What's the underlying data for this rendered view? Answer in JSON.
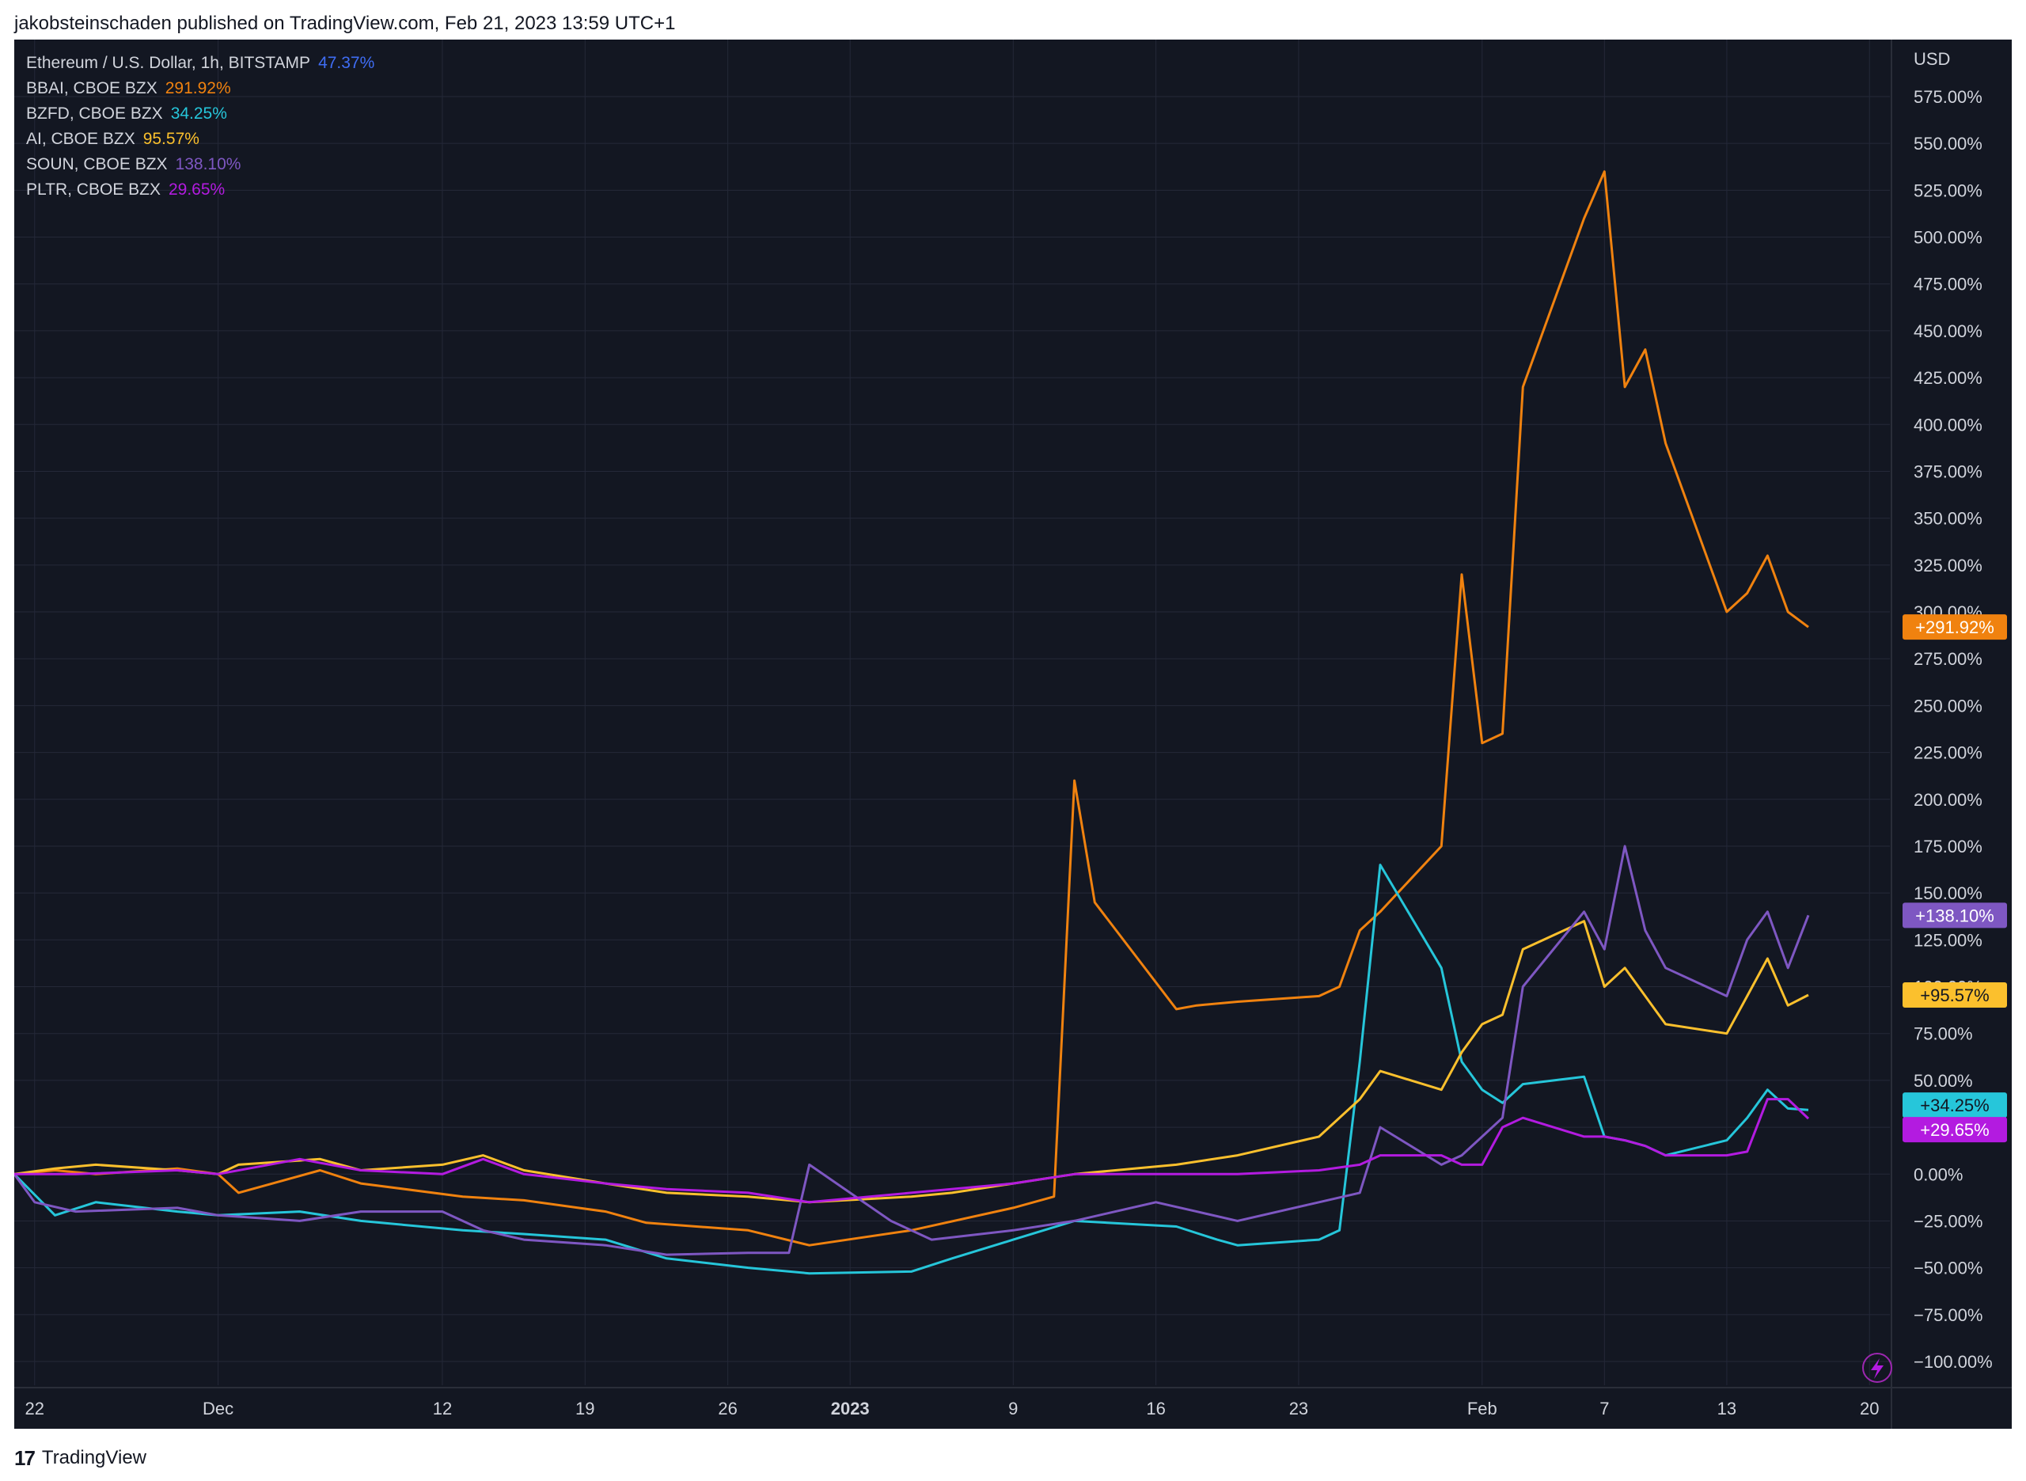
{
  "header": {
    "published": "jakobsteinschaden published on TradingView.com, Feb 21, 2023 13:59 UTC+1"
  },
  "footer": {
    "brand": "TradingView",
    "logo_icon": "tradingview-logo-icon"
  },
  "colors": {
    "background": "#131722",
    "grid": "#242838",
    "text": "#d1d4dc",
    "eth": "#2962ff",
    "bbai": "#f0820f",
    "bzfd": "#26c6da",
    "ai": "#fbc02d",
    "soun": "#673ab7",
    "pltr": "#9c27b0"
  },
  "legend": [
    {
      "label": "Ethereum / U.S. Dollar, 1h, BITSTAMP",
      "value": "47.37%",
      "color": "#3f6df4"
    },
    {
      "label": "BBAI, CBOE BZX",
      "value": "291.92%",
      "color": "#f0820f"
    },
    {
      "label": "BZFD, CBOE BZX",
      "value": "34.25%",
      "color": "#26c6da"
    },
    {
      "label": "AI, CBOE BZX",
      "value": "95.57%",
      "color": "#fbc02d"
    },
    {
      "label": "SOUN, CBOE BZX",
      "value": "138.10%",
      "color": "#7e57c2"
    },
    {
      "label": "PLTR, CBOE BZX",
      "value": "29.65%",
      "color": "#b31be0"
    }
  ],
  "chart_data": {
    "type": "line",
    "ylabel": "USD",
    "ylim": [
      -100,
      575
    ],
    "y_ticks": [
      "575.00%",
      "550.00%",
      "525.00%",
      "500.00%",
      "475.00%",
      "450.00%",
      "425.00%",
      "400.00%",
      "375.00%",
      "350.00%",
      "325.00%",
      "300.00%",
      "275.00%",
      "250.00%",
      "225.00%",
      "200.00%",
      "175.00%",
      "150.00%",
      "125.00%",
      "100.00%",
      "75.00%",
      "50.00%",
      "25.00%",
      "0.00%",
      "−25.00%",
      "−50.00%",
      "−75.00%",
      "−100.00%"
    ],
    "x_ticks": [
      {
        "label": "22",
        "date": "2022-11-22",
        "bold": false
      },
      {
        "label": "Dec",
        "date": "2022-12-01",
        "bold": false
      },
      {
        "label": "12",
        "date": "2022-12-12",
        "bold": false
      },
      {
        "label": "19",
        "date": "2022-12-19",
        "bold": false
      },
      {
        "label": "26",
        "date": "2022-12-26",
        "bold": false
      },
      {
        "label": "2023",
        "date": "2023-01-01",
        "bold": true
      },
      {
        "label": "9",
        "date": "2023-01-09",
        "bold": false
      },
      {
        "label": "16",
        "date": "2023-01-16",
        "bold": false
      },
      {
        "label": "23",
        "date": "2023-01-23",
        "bold": false
      },
      {
        "label": "Feb",
        "date": "2023-02-01",
        "bold": false
      },
      {
        "label": "7",
        "date": "2023-02-07",
        "bold": false
      },
      {
        "label": "13",
        "date": "2023-02-13",
        "bold": false
      },
      {
        "label": "20",
        "date": "2023-02-20",
        "bold": false
      }
    ],
    "series": [
      {
        "name": "BBAI, CBOE BZX",
        "color": "#f0820f",
        "last": "+291.92%",
        "x": [
          "2022-11-21",
          "2022-11-23",
          "2022-11-25",
          "2022-11-29",
          "2022-12-01",
          "2022-12-02",
          "2022-12-06",
          "2022-12-08",
          "2022-12-13",
          "2022-12-16",
          "2022-12-20",
          "2022-12-22",
          "2022-12-27",
          "2022-12-30",
          "2023-01-04",
          "2023-01-09",
          "2023-01-11",
          "2023-01-12",
          "2023-01-13",
          "2023-01-17",
          "2023-01-18",
          "2023-01-20",
          "2023-01-24",
          "2023-01-25",
          "2023-01-26",
          "2023-01-27",
          "2023-01-30",
          "2023-01-31",
          "2023-02-01",
          "2023-02-02",
          "2023-02-03",
          "2023-02-06",
          "2023-02-07",
          "2023-02-08",
          "2023-02-09",
          "2023-02-10",
          "2023-02-13",
          "2023-02-14",
          "2023-02-15",
          "2023-02-16",
          "2023-02-17"
        ],
        "y": [
          0,
          2,
          0,
          3,
          0,
          -10,
          2,
          -5,
          -12,
          -14,
          -20,
          -26,
          -30,
          -38,
          -30,
          -18,
          -12,
          210,
          145,
          88,
          90,
          92,
          95,
          100,
          130,
          140,
          175,
          320,
          230,
          235,
          420,
          510,
          535,
          420,
          440,
          390,
          300,
          310,
          330,
          300,
          291.92
        ]
      },
      {
        "name": "BZFD, CBOE BZX",
        "color": "#26c6da",
        "last": "+34.25%",
        "x": [
          "2022-11-21",
          "2022-11-23",
          "2022-11-25",
          "2022-11-29",
          "2022-12-01",
          "2022-12-05",
          "2022-12-08",
          "2022-12-13",
          "2022-12-16",
          "2022-12-20",
          "2022-12-23",
          "2022-12-27",
          "2022-12-30",
          "2023-01-04",
          "2023-01-06",
          "2023-01-09",
          "2023-01-12",
          "2023-01-17",
          "2023-01-19",
          "2023-01-20",
          "2023-01-24",
          "2023-01-25",
          "2023-01-26",
          "2023-01-27",
          "2023-01-30",
          "2023-01-31",
          "2023-02-01",
          "2023-02-02",
          "2023-02-03",
          "2023-02-06",
          "2023-02-07",
          "2023-02-08",
          "2023-02-09",
          "2023-02-10",
          "2023-02-13",
          "2023-02-14",
          "2023-02-15",
          "2023-02-16",
          "2023-02-17"
        ],
        "y": [
          0,
          -22,
          -15,
          -20,
          -22,
          -20,
          -25,
          -30,
          -32,
          -35,
          -45,
          -50,
          -53,
          -52,
          -45,
          -35,
          -25,
          -28,
          -35,
          -38,
          -35,
          -30,
          60,
          165,
          110,
          60,
          45,
          38,
          48,
          52,
          20,
          18,
          15,
          10,
          18,
          30,
          45,
          35,
          34.25
        ]
      },
      {
        "name": "AI, CBOE BZX",
        "color": "#fbc02d",
        "last": "+95.57%",
        "x": [
          "2022-11-21",
          "2022-11-23",
          "2022-11-25",
          "2022-11-29",
          "2022-12-01",
          "2022-12-02",
          "2022-12-06",
          "2022-12-08",
          "2022-12-12",
          "2022-12-14",
          "2022-12-16",
          "2022-12-20",
          "2022-12-23",
          "2022-12-27",
          "2022-12-30",
          "2023-01-04",
          "2023-01-06",
          "2023-01-09",
          "2023-01-12",
          "2023-01-17",
          "2023-01-20",
          "2023-01-24",
          "2023-01-26",
          "2023-01-27",
          "2023-01-30",
          "2023-01-31",
          "2023-02-01",
          "2023-02-02",
          "2023-02-03",
          "2023-02-06",
          "2023-02-07",
          "2023-02-08",
          "2023-02-09",
          "2023-02-10",
          "2023-02-13",
          "2023-02-14",
          "2023-02-15",
          "2023-02-16",
          "2023-02-17"
        ],
        "y": [
          0,
          3,
          5,
          2,
          0,
          5,
          8,
          2,
          5,
          10,
          2,
          -5,
          -10,
          -12,
          -15,
          -12,
          -10,
          -5,
          0,
          5,
          10,
          20,
          40,
          55,
          45,
          65,
          80,
          85,
          120,
          135,
          100,
          110,
          95,
          80,
          75,
          95,
          115,
          90,
          95.57
        ]
      },
      {
        "name": "SOUN, CBOE BZX",
        "color": "#7e57c2",
        "last": "+138.10%",
        "x": [
          "2022-11-21",
          "2022-11-22",
          "2022-11-24",
          "2022-11-29",
          "2022-12-01",
          "2022-12-05",
          "2022-12-08",
          "2022-12-12",
          "2022-12-14",
          "2022-12-16",
          "2022-12-20",
          "2022-12-23",
          "2022-12-27",
          "2022-12-29",
          "2022-12-30",
          "2023-01-03",
          "2023-01-05",
          "2023-01-09",
          "2023-01-12",
          "2023-01-16",
          "2023-01-18",
          "2023-01-20",
          "2023-01-24",
          "2023-01-26",
          "2023-01-27",
          "2023-01-30",
          "2023-01-31",
          "2023-02-01",
          "2023-02-02",
          "2023-02-03",
          "2023-02-06",
          "2023-02-07",
          "2023-02-08",
          "2023-02-09",
          "2023-02-10",
          "2023-02-13",
          "2023-02-14",
          "2023-02-15",
          "2023-02-16",
          "2023-02-17"
        ],
        "y": [
          0,
          -15,
          -20,
          -18,
          -22,
          -25,
          -20,
          -20,
          -30,
          -35,
          -38,
          -43,
          -42,
          -42,
          5,
          -25,
          -35,
          -30,
          -25,
          -15,
          -20,
          -25,
          -15,
          -10,
          25,
          5,
          10,
          20,
          30,
          100,
          140,
          120,
          175,
          130,
          110,
          95,
          125,
          140,
          110,
          138.1
        ]
      },
      {
        "name": "PLTR, CBOE BZX",
        "color": "#b31be0",
        "last": "+29.65%",
        "x": [
          "2022-11-21",
          "2022-11-24",
          "2022-11-29",
          "2022-12-01",
          "2022-12-05",
          "2022-12-08",
          "2022-12-12",
          "2022-12-14",
          "2022-12-16",
          "2022-12-20",
          "2022-12-23",
          "2022-12-27",
          "2022-12-30",
          "2023-01-04",
          "2023-01-09",
          "2023-01-12",
          "2023-01-17",
          "2023-01-20",
          "2023-01-24",
          "2023-01-26",
          "2023-01-27",
          "2023-01-30",
          "2023-01-31",
          "2023-02-01",
          "2023-02-02",
          "2023-02-03",
          "2023-02-06",
          "2023-02-07",
          "2023-02-08",
          "2023-02-09",
          "2023-02-10",
          "2023-02-13",
          "2023-02-14",
          "2023-02-15",
          "2023-02-16",
          "2023-02-17"
        ],
        "y": [
          0,
          0,
          2,
          0,
          8,
          2,
          0,
          8,
          0,
          -5,
          -8,
          -10,
          -15,
          -10,
          -5,
          0,
          0,
          0,
          2,
          5,
          10,
          10,
          5,
          5,
          25,
          30,
          20,
          20,
          18,
          15,
          10,
          10,
          12,
          40,
          40,
          29.65
        ]
      }
    ]
  }
}
